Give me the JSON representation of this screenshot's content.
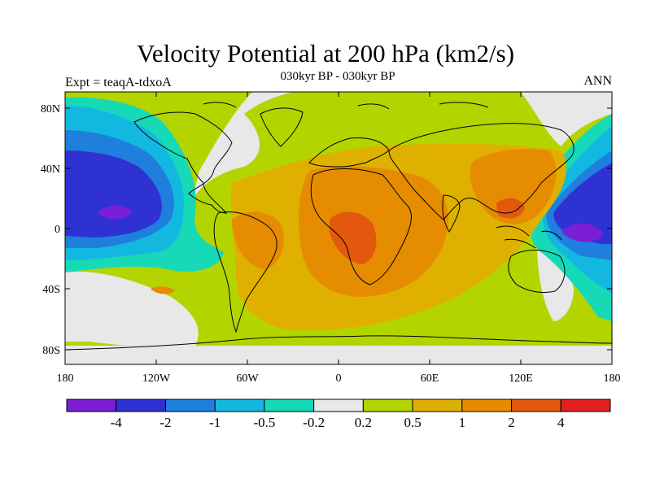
{
  "title": "Velocity Potential at 200 hPa (km2/s)",
  "subtitle": "030kyr BP - 030kyr BP",
  "left_label": "Expt = teaqA-tdxoA",
  "right_label": "ANN",
  "lat_ticks": [
    "80N",
    "40N",
    "0",
    "40S",
    "80S"
  ],
  "lon_ticks": [
    "180",
    "120W",
    "60W",
    "0",
    "60E",
    "120E",
    "180"
  ],
  "colorbar": {
    "colors": [
      "#7a1fd6",
      "#2f32d2",
      "#1f7fdd",
      "#13b8e0",
      "#16d9b8",
      "#e8e8e8",
      "#b4d400",
      "#dfb000",
      "#e58c00",
      "#e2580c",
      "#e41f1f"
    ],
    "labels": [
      "-4",
      "-2",
      "-1",
      "-0.5",
      "-0.2",
      "0.2",
      "0.5",
      "1",
      "2",
      "4"
    ]
  }
}
